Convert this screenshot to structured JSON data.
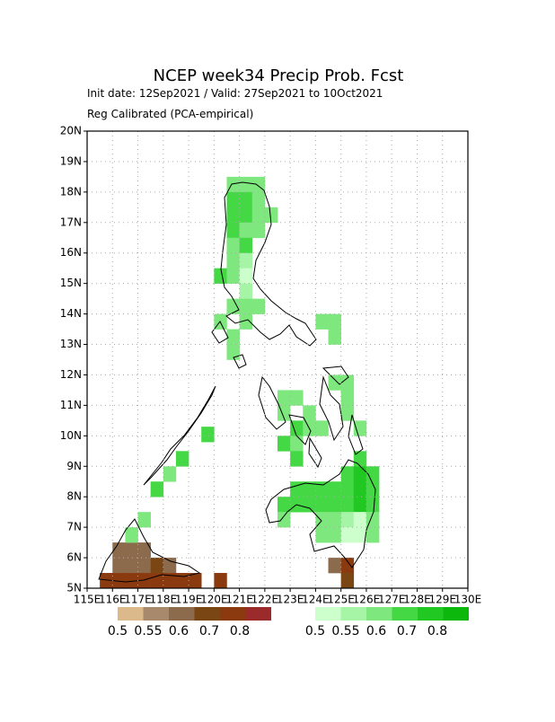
{
  "chart_data": {
    "type": "grid-map",
    "title": "NCEP week34 Precip Prob. Fcst",
    "subtitle": "Init date: 12Sep2021 / Valid: 27Sep2021 to 10Oct2021",
    "method": "Reg Calibrated (PCA-empirical)",
    "xlim": [
      115,
      130
    ],
    "ylim": [
      5,
      20
    ],
    "xticks": [
      {
        "value": 115,
        "label": "115E"
      },
      {
        "value": 116,
        "label": "116E"
      },
      {
        "value": 117,
        "label": "117E"
      },
      {
        "value": 118,
        "label": "118E"
      },
      {
        "value": 119,
        "label": "119E"
      },
      {
        "value": 120,
        "label": "120E"
      },
      {
        "value": 121,
        "label": "121E"
      },
      {
        "value": 122,
        "label": "122E"
      },
      {
        "value": 123,
        "label": "123E"
      },
      {
        "value": 124,
        "label": "124E"
      },
      {
        "value": 125,
        "label": "125E"
      },
      {
        "value": 126,
        "label": "126E"
      },
      {
        "value": 127,
        "label": "127E"
      },
      {
        "value": 128,
        "label": "128E"
      },
      {
        "value": 129,
        "label": "129E"
      },
      {
        "value": 130,
        "label": "130E"
      }
    ],
    "yticks": [
      {
        "value": 5,
        "label": "5N"
      },
      {
        "value": 6,
        "label": "6N"
      },
      {
        "value": 7,
        "label": "7N"
      },
      {
        "value": 8,
        "label": "8N"
      },
      {
        "value": 9,
        "label": "9N"
      },
      {
        "value": 10,
        "label": "10N"
      },
      {
        "value": 11,
        "label": "11N"
      },
      {
        "value": 12,
        "label": "12N"
      },
      {
        "value": 13,
        "label": "13N"
      },
      {
        "value": 14,
        "label": "14N"
      },
      {
        "value": 15,
        "label": "15N"
      },
      {
        "value": 16,
        "label": "16N"
      },
      {
        "value": 17,
        "label": "17N"
      },
      {
        "value": 18,
        "label": "18N"
      },
      {
        "value": 19,
        "label": "19N"
      },
      {
        "value": 20,
        "label": "20N"
      }
    ],
    "grid": true,
    "colorbars": [
      {
        "colors": [
          "#dcb98b",
          "#a8896b",
          "#8c6a4c",
          "#7a4714",
          "#8b3a10",
          "#9b2b2b"
        ],
        "labels": [
          0.5,
          0.55,
          0.6,
          0.7,
          0.8
        ],
        "cells": [
          {
            "lon": 116,
            "lat": 6,
            "prob": 0.6
          },
          {
            "lon": 116.5,
            "lat": 6,
            "prob": 0.6
          },
          {
            "lon": 117,
            "lat": 6,
            "prob": 0.6
          },
          {
            "lon": 116,
            "lat": 5.5,
            "prob": 0.6
          },
          {
            "lon": 116.5,
            "lat": 5.5,
            "prob": 0.6
          },
          {
            "lon": 117,
            "lat": 5.5,
            "prob": 0.6
          },
          {
            "lon": 117.5,
            "lat": 5.5,
            "prob": 0.7
          },
          {
            "lon": 118,
            "lat": 5.5,
            "prob": 0.6
          },
          {
            "lon": 115.5,
            "lat": 5,
            "prob": 0.8
          },
          {
            "lon": 116,
            "lat": 5,
            "prob": 0.8
          },
          {
            "lon": 116.5,
            "lat": 5,
            "prob": 0.8
          },
          {
            "lon": 117,
            "lat": 5,
            "prob": 0.8
          },
          {
            "lon": 117.5,
            "lat": 5,
            "prob": 0.8
          },
          {
            "lon": 118,
            "lat": 5,
            "prob": 0.8
          },
          {
            "lon": 118.5,
            "lat": 5,
            "prob": 0.8
          },
          {
            "lon": 119,
            "lat": 5,
            "prob": 0.8
          },
          {
            "lon": 120,
            "lat": 5,
            "prob": 0.8
          },
          {
            "lon": 124.5,
            "lat": 5.5,
            "prob": 0.6
          },
          {
            "lon": 125,
            "lat": 5.5,
            "prob": 0.8
          },
          {
            "lon": 125,
            "lat": 5,
            "prob": 0.7
          }
        ]
      },
      {
        "colors": [
          "#ccffcc",
          "#a6f5a6",
          "#7ee87e",
          "#44d844",
          "#22c822",
          "#0cb80c"
        ],
        "labels": [
          0.5,
          0.55,
          0.6,
          0.7,
          0.8
        ],
        "cells": [
          {
            "lon": 120.5,
            "lat": 18,
            "prob": 0.6
          },
          {
            "lon": 121,
            "lat": 18,
            "prob": 0.6
          },
          {
            "lon": 121.5,
            "lat": 18,
            "prob": 0.6
          },
          {
            "lon": 120.5,
            "lat": 17.5,
            "prob": 0.7
          },
          {
            "lon": 121,
            "lat": 17.5,
            "prob": 0.7
          },
          {
            "lon": 121.5,
            "lat": 17.5,
            "prob": 0.6
          },
          {
            "lon": 120.5,
            "lat": 17,
            "prob": 0.7
          },
          {
            "lon": 121,
            "lat": 17,
            "prob": 0.7
          },
          {
            "lon": 121.5,
            "lat": 17,
            "prob": 0.6
          },
          {
            "lon": 122,
            "lat": 17,
            "prob": 0.6
          },
          {
            "lon": 120.5,
            "lat": 16.5,
            "prob": 0.7
          },
          {
            "lon": 121,
            "lat": 16.5,
            "prob": 0.6
          },
          {
            "lon": 121.5,
            "lat": 16.5,
            "prob": 0.6
          },
          {
            "lon": 120.5,
            "lat": 16,
            "prob": 0.6
          },
          {
            "lon": 121,
            "lat": 16,
            "prob": 0.7
          },
          {
            "lon": 120.5,
            "lat": 15.5,
            "prob": 0.6
          },
          {
            "lon": 121,
            "lat": 15.5,
            "prob": 0.55
          },
          {
            "lon": 120,
            "lat": 15,
            "prob": 0.7
          },
          {
            "lon": 120.5,
            "lat": 15,
            "prob": 0.6
          },
          {
            "lon": 121,
            "lat": 15,
            "prob": 0.5
          },
          {
            "lon": 121,
            "lat": 14.5,
            "prob": 0.55
          },
          {
            "lon": 120.5,
            "lat": 14,
            "prob": 0.6
          },
          {
            "lon": 121,
            "lat": 14,
            "prob": 0.6
          },
          {
            "lon": 121.5,
            "lat": 14,
            "prob": 0.6
          },
          {
            "lon": 120,
            "lat": 13.5,
            "prob": 0.6
          },
          {
            "lon": 121,
            "lat": 13.5,
            "prob": 0.6
          },
          {
            "lon": 124,
            "lat": 13.5,
            "prob": 0.6
          },
          {
            "lon": 124.5,
            "lat": 13.5,
            "prob": 0.6
          },
          {
            "lon": 120.5,
            "lat": 13,
            "prob": 0.6
          },
          {
            "lon": 124.5,
            "lat": 13,
            "prob": 0.6
          },
          {
            "lon": 120.5,
            "lat": 12.5,
            "prob": 0.6
          },
          {
            "lon": 124.5,
            "lat": 11.5,
            "prob": 0.6
          },
          {
            "lon": 125,
            "lat": 11.5,
            "prob": 0.6
          },
          {
            "lon": 122.5,
            "lat": 11,
            "prob": 0.6
          },
          {
            "lon": 123,
            "lat": 11,
            "prob": 0.6
          },
          {
            "lon": 125,
            "lat": 11,
            "prob": 0.6
          },
          {
            "lon": 122.5,
            "lat": 10.5,
            "prob": 0.6
          },
          {
            "lon": 123.5,
            "lat": 10.5,
            "prob": 0.6
          },
          {
            "lon": 125,
            "lat": 10.5,
            "prob": 0.6
          },
          {
            "lon": 123,
            "lat": 10,
            "prob": 0.7
          },
          {
            "lon": 123.5,
            "lat": 10,
            "prob": 0.6
          },
          {
            "lon": 124,
            "lat": 10,
            "prob": 0.6
          },
          {
            "lon": 125.5,
            "lat": 10,
            "prob": 0.6
          },
          {
            "lon": 122.5,
            "lat": 9.5,
            "prob": 0.7
          },
          {
            "lon": 123,
            "lat": 9.5,
            "prob": 0.6
          },
          {
            "lon": 119.5,
            "lat": 9.8,
            "prob": 0.7
          },
          {
            "lon": 123,
            "lat": 9,
            "prob": 0.7
          },
          {
            "lon": 125.5,
            "lat": 9,
            "prob": 0.7
          },
          {
            "lon": 118.5,
            "lat": 9,
            "prob": 0.7
          },
          {
            "lon": 118,
            "lat": 8.5,
            "prob": 0.6
          },
          {
            "lon": 117.5,
            "lat": 8,
            "prob": 0.7
          },
          {
            "lon": 125,
            "lat": 8.5,
            "prob": 0.7
          },
          {
            "lon": 125.5,
            "lat": 8.5,
            "prob": 0.8
          },
          {
            "lon": 126,
            "lat": 8.5,
            "prob": 0.7
          },
          {
            "lon": 123,
            "lat": 8,
            "prob": 0.7
          },
          {
            "lon": 123.5,
            "lat": 8,
            "prob": 0.7
          },
          {
            "lon": 124,
            "lat": 8,
            "prob": 0.7
          },
          {
            "lon": 124.5,
            "lat": 8,
            "prob": 0.7
          },
          {
            "lon": 125,
            "lat": 8,
            "prob": 0.7
          },
          {
            "lon": 125.5,
            "lat": 8,
            "prob": 0.8
          },
          {
            "lon": 126,
            "lat": 8,
            "prob": 0.7
          },
          {
            "lon": 122.5,
            "lat": 7.5,
            "prob": 0.7
          },
          {
            "lon": 123,
            "lat": 7.5,
            "prob": 0.7
          },
          {
            "lon": 123.5,
            "lat": 7.5,
            "prob": 0.7
          },
          {
            "lon": 124,
            "lat": 7.5,
            "prob": 0.7
          },
          {
            "lon": 124.5,
            "lat": 7.5,
            "prob": 0.7
          },
          {
            "lon": 125,
            "lat": 7.5,
            "prob": 0.7
          },
          {
            "lon": 125.5,
            "lat": 7.5,
            "prob": 0.8
          },
          {
            "lon": 126,
            "lat": 7.5,
            "prob": 0.7
          },
          {
            "lon": 122.5,
            "lat": 7,
            "prob": 0.6
          },
          {
            "lon": 117,
            "lat": 7,
            "prob": 0.6
          },
          {
            "lon": 124,
            "lat": 7,
            "prob": 0.6
          },
          {
            "lon": 124.5,
            "lat": 7,
            "prob": 0.6
          },
          {
            "lon": 125,
            "lat": 7,
            "prob": 0.55
          },
          {
            "lon": 125.5,
            "lat": 7,
            "prob": 0.5
          },
          {
            "lon": 126,
            "lat": 7,
            "prob": 0.6
          },
          {
            "lon": 116.5,
            "lat": 6.5,
            "prob": 0.6
          },
          {
            "lon": 124,
            "lat": 6.5,
            "prob": 0.6
          },
          {
            "lon": 124.5,
            "lat": 6.5,
            "prob": 0.6
          },
          {
            "lon": 125,
            "lat": 6.5,
            "prob": 0.5
          },
          {
            "lon": 125.5,
            "lat": 6.5,
            "prob": 0.5
          },
          {
            "lon": 126,
            "lat": 6.5,
            "prob": 0.6
          }
        ]
      }
    ]
  }
}
